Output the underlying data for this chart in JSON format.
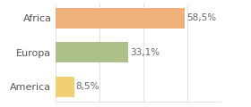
{
  "categories": [
    "Africa",
    "Europa",
    "America"
  ],
  "values": [
    58.5,
    33.1,
    8.5
  ],
  "labels": [
    "58,5%",
    "33,1%",
    "8,5%"
  ],
  "bar_colors": [
    "#f0b07a",
    "#adc08a",
    "#f0d070"
  ],
  "background_color": "#ffffff",
  "xlim": [
    0,
    75
  ],
  "bar_height": 0.6,
  "label_fontsize": 7.5,
  "ylabel_fontsize": 8,
  "grid_color": "#dddddd",
  "grid_linewidth": 0.6,
  "label_color": "#666666",
  "ylabel_color": "#555555"
}
